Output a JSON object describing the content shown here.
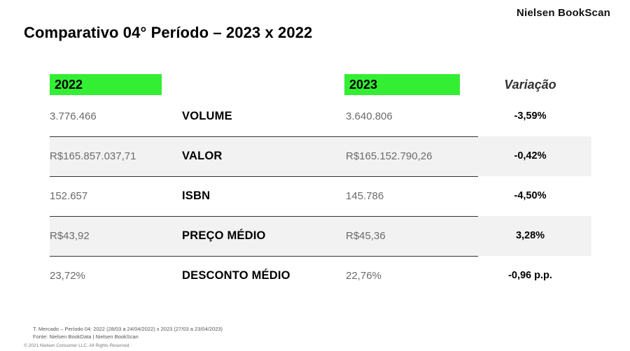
{
  "brand": "Nielsen BookScan",
  "title": "Comparativo 04° Período – 2023 x 2022",
  "header": {
    "col_2022": "2022",
    "col_2023": "2023",
    "col_variation": "Variação",
    "highlight_color": "#33ee33"
  },
  "rows": [
    {
      "metric": "VOLUME",
      "v2022": "3.776.466",
      "v2023": "3.640.806",
      "variation": "-3,59%"
    },
    {
      "metric": "VALOR",
      "v2022": "R$165.857.037,71",
      "v2023": "R$165.152.790,26",
      "variation": "-0,42%"
    },
    {
      "metric": "ISBN",
      "v2022": "152.657",
      "v2023": "145.786",
      "variation": "-4,50%"
    },
    {
      "metric": "PREÇO MÉDIO",
      "v2022": "R$43,92",
      "v2023": "R$45,36",
      "variation": "3,28%"
    },
    {
      "metric": "DESCONTO MÉDIO",
      "v2022": "23,72%",
      "v2023": "22,76%",
      "variation": "-0,96 p.p."
    }
  ],
  "footer": {
    "note1": "T. Mercado – Período 04: 2022 (28/03 a 24/04/2022) x 2023 (27/03 a 23/04/2023)",
    "note2": "Fonte: Nielsen BookData | Nielsen BookScan",
    "copyright": "© 2021 Nielsen Consumer LLC. All Rights Reserved."
  }
}
